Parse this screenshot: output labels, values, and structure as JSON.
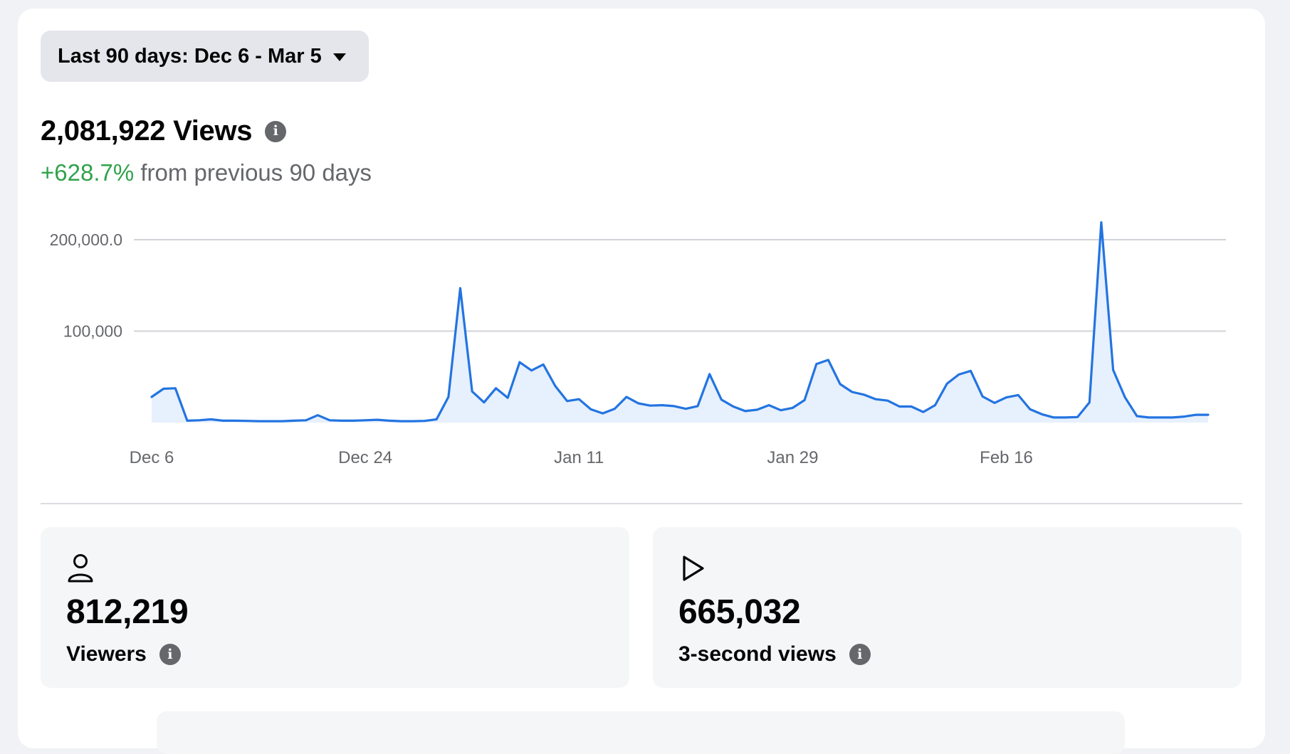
{
  "date_range": {
    "label": "Last 90 days: Dec 6 - Mar 5",
    "icon": "caret-down-icon"
  },
  "summary": {
    "views_total": "2,081,922 Views",
    "change_pct": "+628.7%",
    "change_text": "from previous 90 days",
    "info_icon": "info-icon"
  },
  "colors": {
    "line": "#2374e1",
    "area": "#e7f0fd",
    "positive": "#31a24c",
    "grid": "#d0d3d8"
  },
  "chart_data": {
    "type": "area",
    "ylim": [
      0,
      200000
    ],
    "y_ticks": [
      {
        "value": 200000,
        "label": "200,000.0"
      },
      {
        "value": 100000,
        "label": "100,000"
      }
    ],
    "x_ticks": [
      {
        "index": 0,
        "label": "Dec 6"
      },
      {
        "index": 18,
        "label": "Dec 24"
      },
      {
        "index": 36,
        "label": "Jan 11"
      },
      {
        "index": 54,
        "label": "Jan 29"
      },
      {
        "index": 72,
        "label": "Feb 16"
      }
    ],
    "grid": true,
    "series": [
      {
        "values": [
          28000,
          37000,
          37500,
          2000,
          2500,
          3500,
          2000,
          2000,
          1800,
          1500,
          1500,
          1500,
          2000,
          2500,
          8000,
          2500,
          2000,
          2000,
          2500,
          3000,
          2000,
          1500,
          1500,
          1800,
          3500,
          28000,
          147000,
          34000,
          22000,
          37500,
          27000,
          66000,
          57000,
          63500,
          40000,
          23500,
          25500,
          14500,
          10000,
          15000,
          28000,
          21000,
          18500,
          19000,
          18000,
          15000,
          18000,
          53000,
          25000,
          17500,
          12500,
          14000,
          19000,
          13500,
          16000,
          24500,
          64000,
          68500,
          42000,
          33500,
          30500,
          25500,
          24000,
          17500,
          17500,
          11500,
          19000,
          42500,
          52500,
          56500,
          28500,
          21500,
          27500,
          30000,
          14500,
          9000,
          5500,
          5500,
          6000,
          22000,
          219000,
          57500,
          27500,
          7000,
          5500,
          5500,
          5500,
          6500,
          8500,
          8500
        ]
      }
    ]
  },
  "stats": [
    {
      "icon": "person-icon",
      "value": "812,219",
      "label": "Viewers"
    },
    {
      "icon": "play-icon",
      "value": "665,032",
      "label": "3-second views"
    }
  ]
}
